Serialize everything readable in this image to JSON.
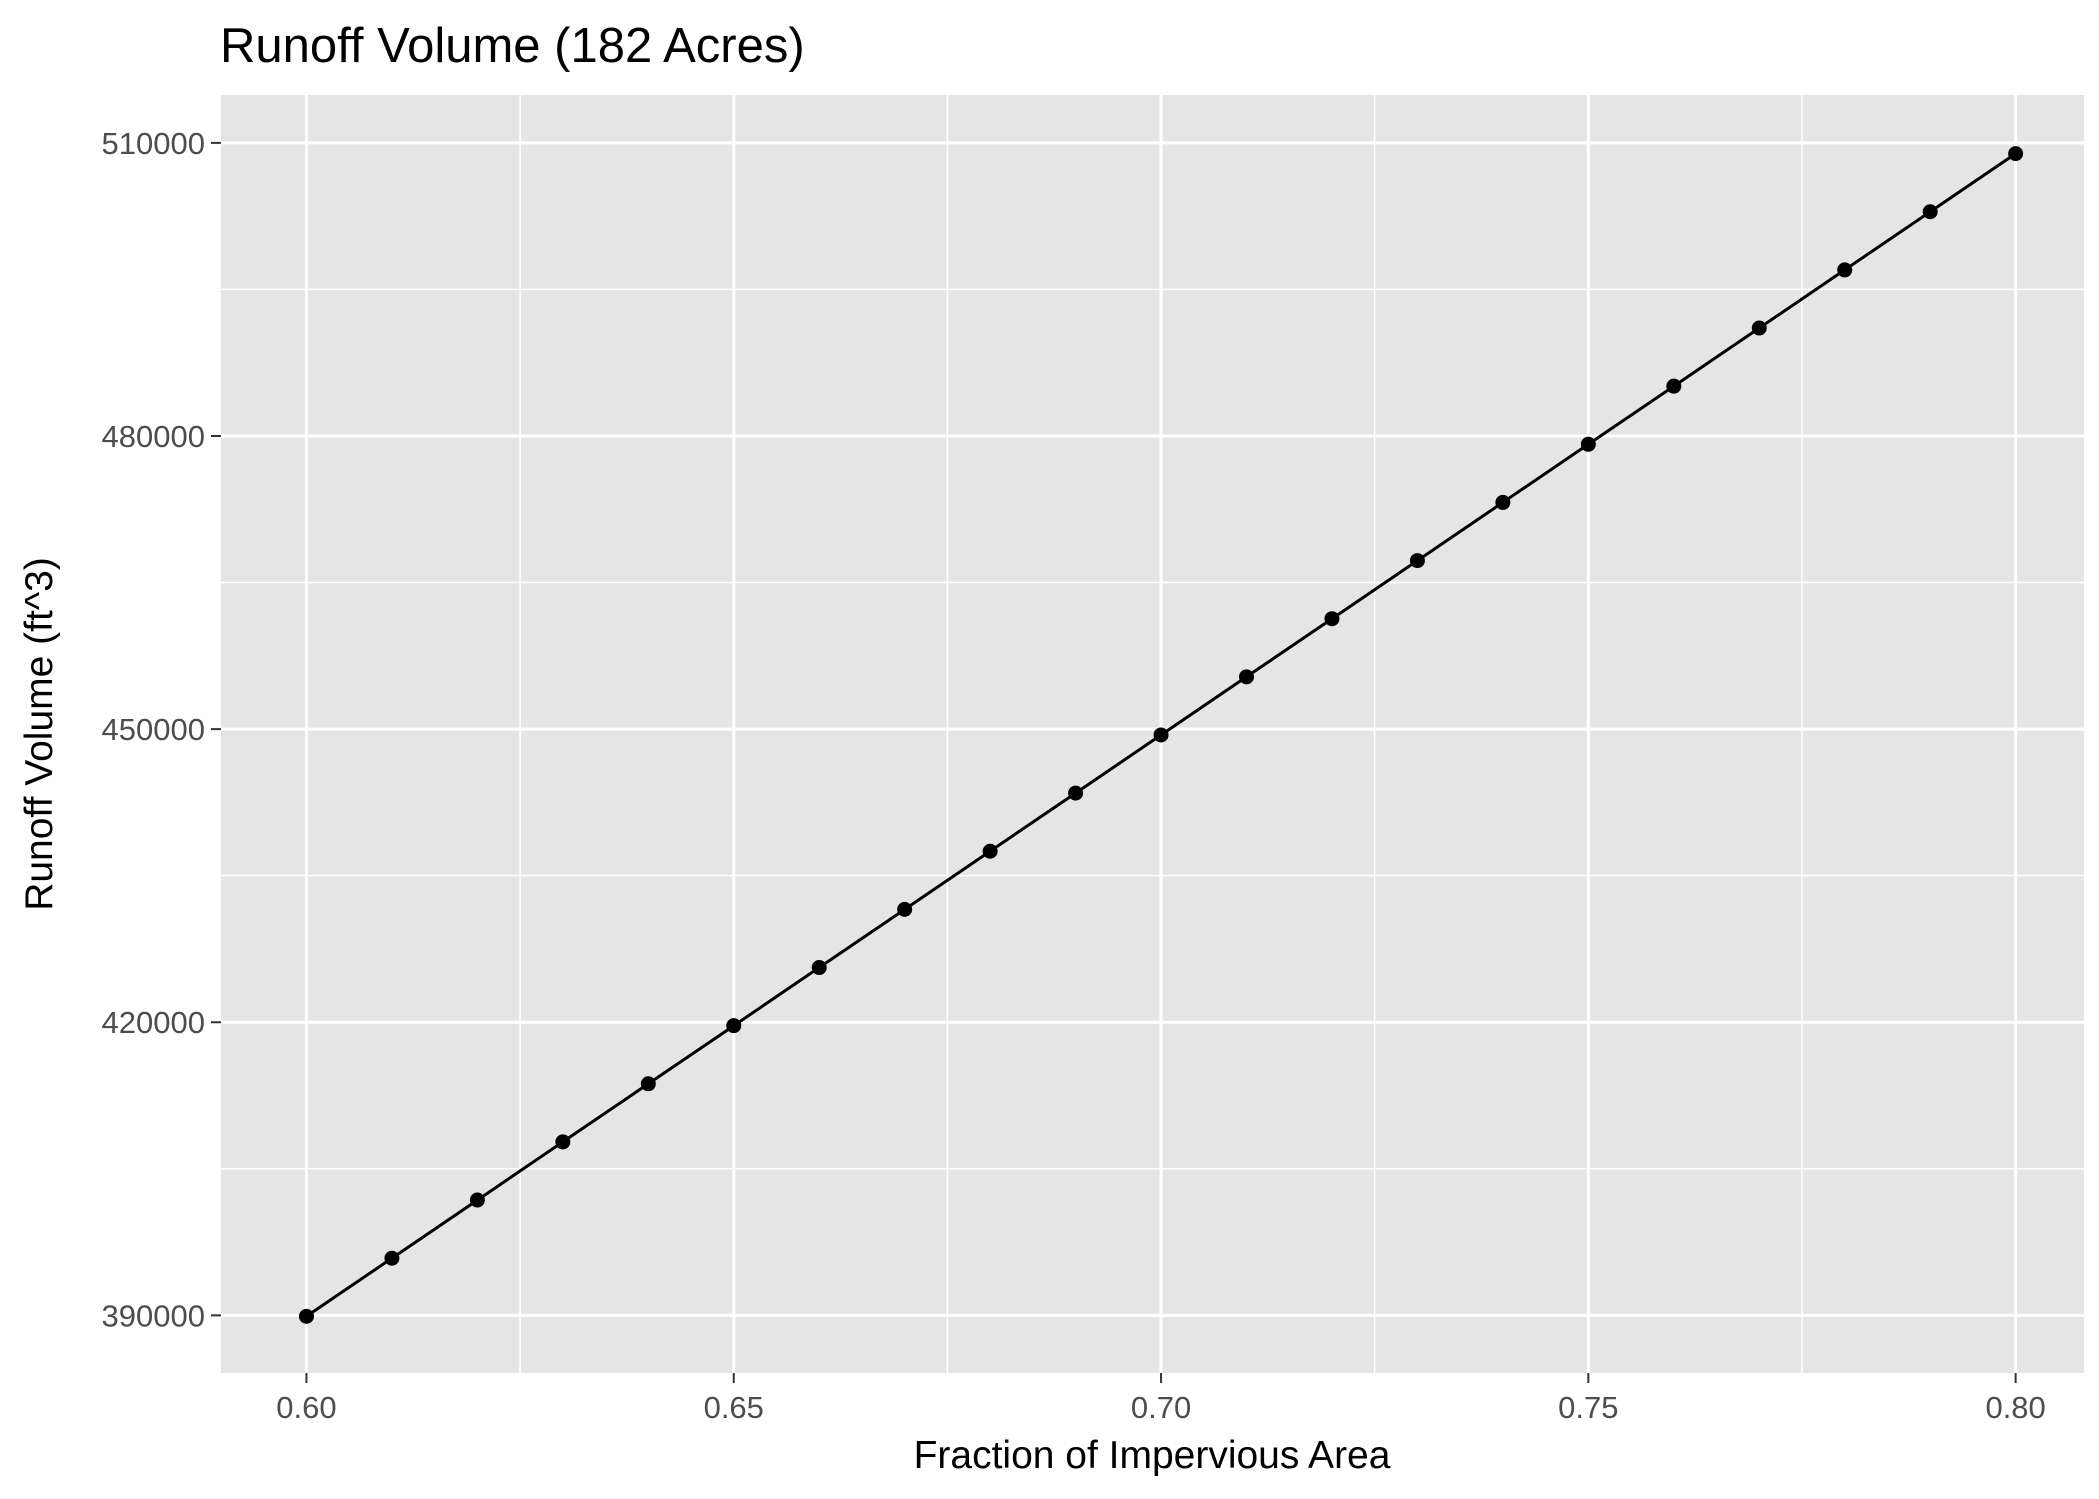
{
  "chart_data": {
    "type": "line",
    "title": "Runoff Volume (182 Acres)",
    "xlabel": "Fraction of Impervious Area",
    "ylabel": "Runoff Volume (ft^3)",
    "xlim": [
      0.59,
      0.808
    ],
    "ylim": [
      384100,
      514900
    ],
    "x_ticks": [
      0.6,
      0.65,
      0.7,
      0.75,
      0.8
    ],
    "x_tick_labels": [
      "0.60",
      "0.65",
      "0.70",
      "0.75",
      "0.80"
    ],
    "y_ticks": [
      390000,
      420000,
      450000,
      480000,
      510000
    ],
    "y_tick_labels": [
      "390000",
      "420000",
      "450000",
      "480000",
      "510000"
    ],
    "grid": true,
    "series": [
      {
        "name": "Runoff Volume",
        "x": [
          0.6,
          0.61,
          0.62,
          0.63,
          0.64,
          0.65,
          0.66,
          0.67,
          0.68,
          0.69,
          0.7,
          0.71,
          0.72,
          0.73,
          0.74,
          0.75,
          0.76,
          0.77,
          0.78,
          0.79,
          0.8
        ],
        "y": [
          389900,
          395850,
          401800,
          407750,
          413700,
          419650,
          425600,
          431550,
          437500,
          443450,
          449400,
          455350,
          461300,
          467250,
          473200,
          479150,
          485100,
          491050,
          497000,
          502950,
          508900
        ]
      }
    ],
    "colors": {
      "panel": "#e5e5e5",
      "grid": "#ffffff",
      "line": "#000000",
      "tick_text": "#4d4d4d",
      "tick_mark": "#333333"
    }
  }
}
